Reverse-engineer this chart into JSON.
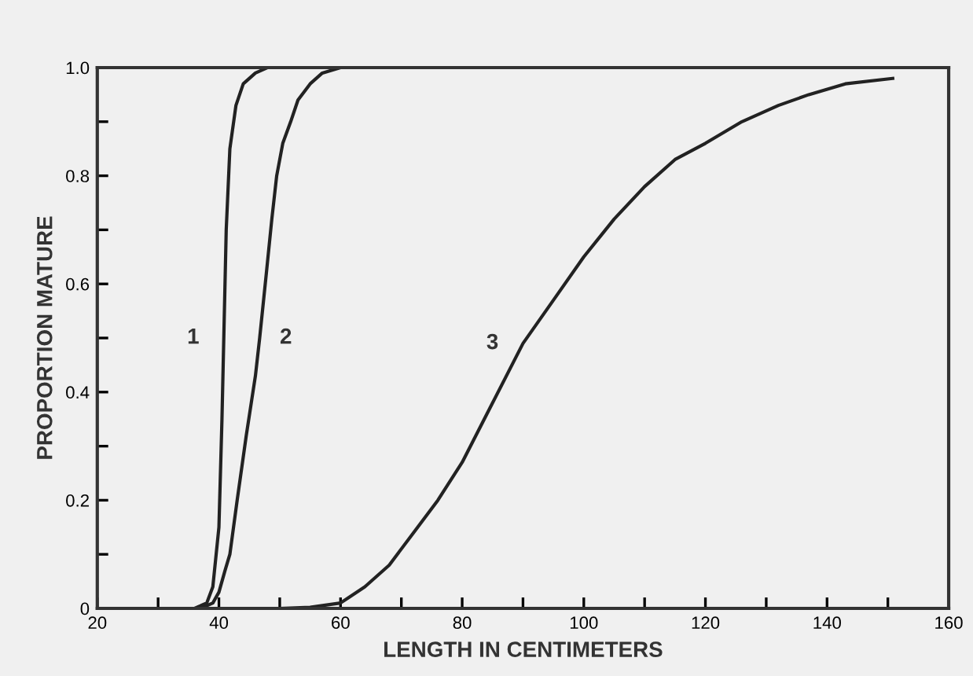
{
  "chart_data": {
    "type": "line",
    "xlabel": "LENGTH IN CENTIMETERS",
    "ylabel": "PROPORTION MATURE",
    "xlim": [
      20,
      160
    ],
    "ylim": [
      0,
      1.0
    ],
    "xticks": [
      20,
      {
        "value": 30,
        "label": null
      },
      40,
      {
        "value": 50,
        "label": null
      },
      60,
      {
        "value": 70,
        "label": null
      },
      80,
      {
        "value": 90,
        "label": null
      },
      100,
      {
        "value": 110,
        "label": null
      },
      120,
      {
        "value": 130,
        "label": null
      },
      140,
      {
        "value": 150,
        "label": null
      },
      160
    ],
    "yticks": [
      0,
      {
        "value": 0.1,
        "label": null
      },
      0.2,
      {
        "value": 0.3,
        "label": null
      },
      0.4,
      {
        "value": 0.5,
        "label": null
      },
      0.6,
      {
        "value": 0.7,
        "label": null
      },
      0.8,
      {
        "value": 0.9,
        "label": null
      },
      {
        "value": 1.0,
        "label": "1.0"
      }
    ],
    "grid": false,
    "legend": false,
    "marker": "none",
    "line_style": "solid",
    "series": [
      {
        "name": "1",
        "color": "#222222",
        "x": [
          36,
          38,
          39,
          40,
          40.5,
          40.8,
          41.2,
          41.8,
          42.8,
          44,
          46,
          48
        ],
        "values": [
          0,
          0.01,
          0.04,
          0.15,
          0.35,
          0.5,
          0.7,
          0.85,
          0.93,
          0.97,
          0.99,
          1.0
        ]
      },
      {
        "name": "2",
        "color": "#222222",
        "x": [
          37,
          39,
          40,
          41,
          41.8,
          43,
          44.5,
          46,
          46.7,
          47.8,
          48.7,
          49.5,
          50.5,
          51.8,
          53,
          55,
          57,
          60,
          68
        ],
        "values": [
          0,
          0.01,
          0.03,
          0.07,
          0.1,
          0.2,
          0.32,
          0.43,
          0.5,
          0.62,
          0.72,
          0.8,
          0.86,
          0.9,
          0.94,
          0.97,
          0.99,
          1.0,
          1.0
        ]
      },
      {
        "name": "3",
        "color": "#222222",
        "x": [
          50,
          55,
          60,
          64,
          68,
          72,
          76,
          80,
          85,
          90,
          95,
          100,
          105,
          110,
          115,
          120,
          126,
          132,
          137,
          143,
          150.8
        ],
        "values": [
          0,
          0.002,
          0.01,
          0.04,
          0.08,
          0.14,
          0.2,
          0.27,
          0.38,
          0.49,
          0.57,
          0.65,
          0.72,
          0.78,
          0.83,
          0.86,
          0.9,
          0.93,
          0.95,
          0.97,
          0.98
        ]
      }
    ]
  }
}
